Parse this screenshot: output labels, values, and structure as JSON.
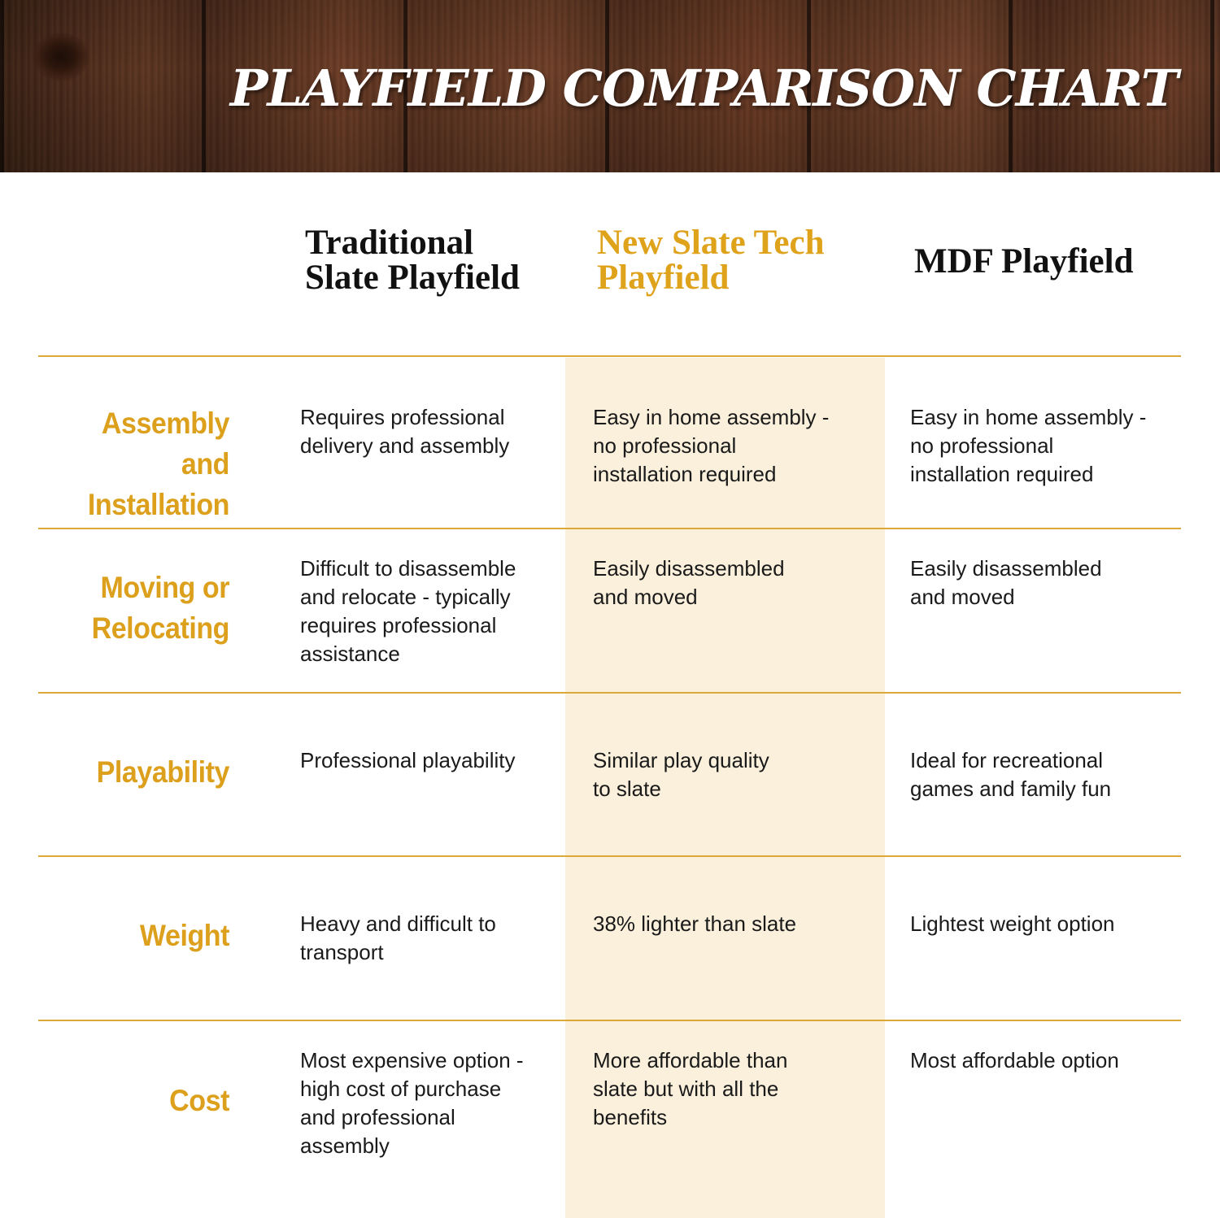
{
  "title": "PLAYFIELD COMPARISON CHART",
  "colors": {
    "accent": "#dca01d",
    "rule": "#dba93a",
    "highlight_column_bg": "#fbf0dc",
    "text": "#1a1a1a"
  },
  "columns": [
    {
      "lines": [
        "Traditional",
        "Slate Playfield"
      ]
    },
    {
      "lines": [
        "New Slate Tech",
        "Playfield"
      ],
      "highlighted": true
    },
    {
      "lines": [
        "MDF Playfield"
      ]
    }
  ],
  "rows": [
    {
      "label": [
        "Assembly and",
        "Installation"
      ],
      "cells": [
        [
          "Requires professional",
          "delivery and assembly"
        ],
        [
          "Easy in home assembly -",
          "no professional",
          "installation required"
        ],
        [
          "Easy in home assembly -",
          "no professional",
          "installation required"
        ]
      ]
    },
    {
      "label": [
        "Moving or",
        "Relocating"
      ],
      "cells": [
        [
          "Difficult to disassemble",
          "and relocate - typically",
          "requires professional",
          "assistance"
        ],
        [
          "Easily disassembled",
          "and moved"
        ],
        [
          "Easily disassembled",
          "and moved"
        ]
      ]
    },
    {
      "label": [
        "Playability"
      ],
      "cells": [
        [
          "Professional playability"
        ],
        [
          "Similar play quality",
          "to slate"
        ],
        [
          "Ideal for recreational",
          "games and family fun"
        ]
      ]
    },
    {
      "label": [
        "Weight"
      ],
      "cells": [
        [
          "Heavy and difficult to",
          "transport"
        ],
        [
          "38% lighter than slate"
        ],
        [
          "Lightest weight option"
        ]
      ]
    },
    {
      "label": [
        "Cost"
      ],
      "cells": [
        [
          "Most expensive option -",
          "high cost of purchase",
          "and professional",
          "assembly"
        ],
        [
          "More affordable than",
          "slate but with all the",
          "benefits"
        ],
        [
          "Most affordable option"
        ]
      ]
    }
  ]
}
